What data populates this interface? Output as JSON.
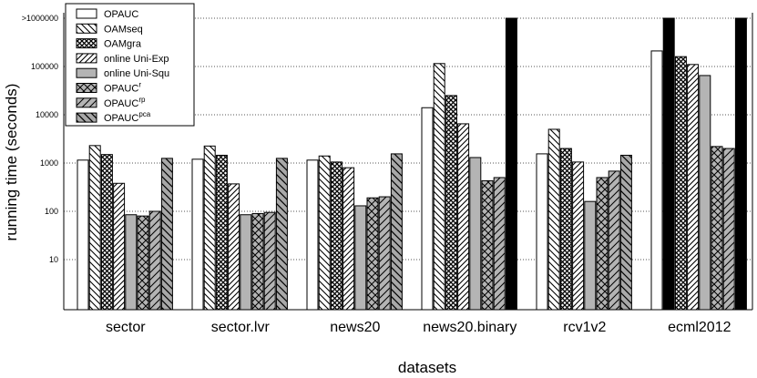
{
  "chart_data": {
    "type": "bar",
    "ylabel": "running time (seconds)",
    "xlabel": "datasets",
    "yscale": "log",
    "ylim": [
      1,
      1000000
    ],
    "yticks": [
      {
        "value": 10,
        "label": "10"
      },
      {
        "value": 100,
        "label": "100"
      },
      {
        "value": 1000,
        "label": "1000"
      },
      {
        "value": 10000,
        "label": "10000"
      },
      {
        "value": 100000,
        "label": "100000"
      },
      {
        "value": 1000000,
        "label": ">1000000"
      }
    ],
    "grid": "horizontal dotted",
    "legend_position": "top-left",
    "categories": [
      "sector",
      "sector.lvr",
      "news20",
      "news20.binary",
      "rcv1v2",
      "ecml2012"
    ],
    "series": [
      {
        "name": "OPAUC",
        "sup": "",
        "pattern": "white",
        "values": [
          1150,
          1200,
          1150,
          14000,
          1550,
          210000
        ]
      },
      {
        "name": "OAMseq",
        "sup": "",
        "pattern": "back-diagonal",
        "values": [
          2300,
          2250,
          1400,
          115000,
          5000,
          1000000
        ]
      },
      {
        "name": "OAMgra",
        "sup": "",
        "pattern": "crosshatch",
        "values": [
          1500,
          1450,
          1050,
          25000,
          2000,
          160000
        ]
      },
      {
        "name": "online Uni-Exp",
        "sup": "",
        "pattern": "forward-diagonal",
        "values": [
          380,
          370,
          800,
          6500,
          1050,
          110000
        ]
      },
      {
        "name": "online Uni-Squ",
        "sup": "",
        "pattern": "gray",
        "values": [
          85,
          85,
          130,
          1300,
          160,
          65000
        ]
      },
      {
        "name": "OPAUC",
        "sup": "r",
        "pattern": "gray-crosshatch",
        "values": [
          80,
          90,
          190,
          430,
          500,
          2200
        ]
      },
      {
        "name": "OPAUC",
        "sup": "rp",
        "pattern": "gray-forward-diagonal",
        "values": [
          100,
          95,
          200,
          500,
          680,
          2000
        ]
      },
      {
        "name": "OPAUC",
        "sup": "pca",
        "pattern": "gray-back-diagonal",
        "values": [
          1250,
          1250,
          1550,
          1000000,
          1450,
          1000000
        ]
      }
    ]
  }
}
